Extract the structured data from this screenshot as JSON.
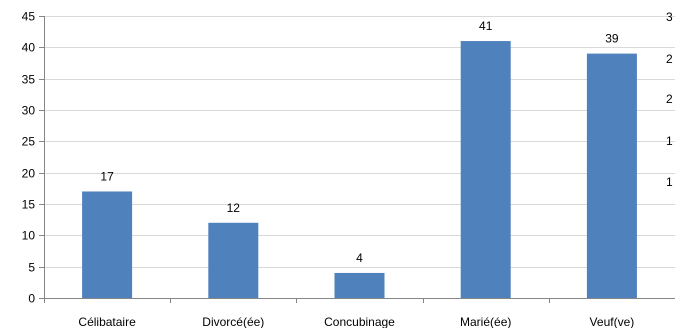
{
  "chart_data": {
    "type": "bar",
    "categories": [
      "Célibataire",
      "Divorcé(ée)",
      "Concubinage",
      "Marié(ée)",
      "Veuf(ve)"
    ],
    "values": [
      17,
      12,
      4,
      41,
      39
    ],
    "data_labels": [
      "17",
      "12",
      "4",
      "41",
      "39"
    ],
    "title": "",
    "xlabel": "",
    "ylabel": "",
    "ylim": [
      0,
      45
    ],
    "yticks": [
      0,
      5,
      10,
      15,
      20,
      25,
      30,
      35,
      40,
      45
    ],
    "right_axis_ticks": [
      "3",
      "2",
      "2",
      "1",
      "1"
    ],
    "grid": true,
    "legend": "none",
    "bar_color": "#4f81bd"
  }
}
